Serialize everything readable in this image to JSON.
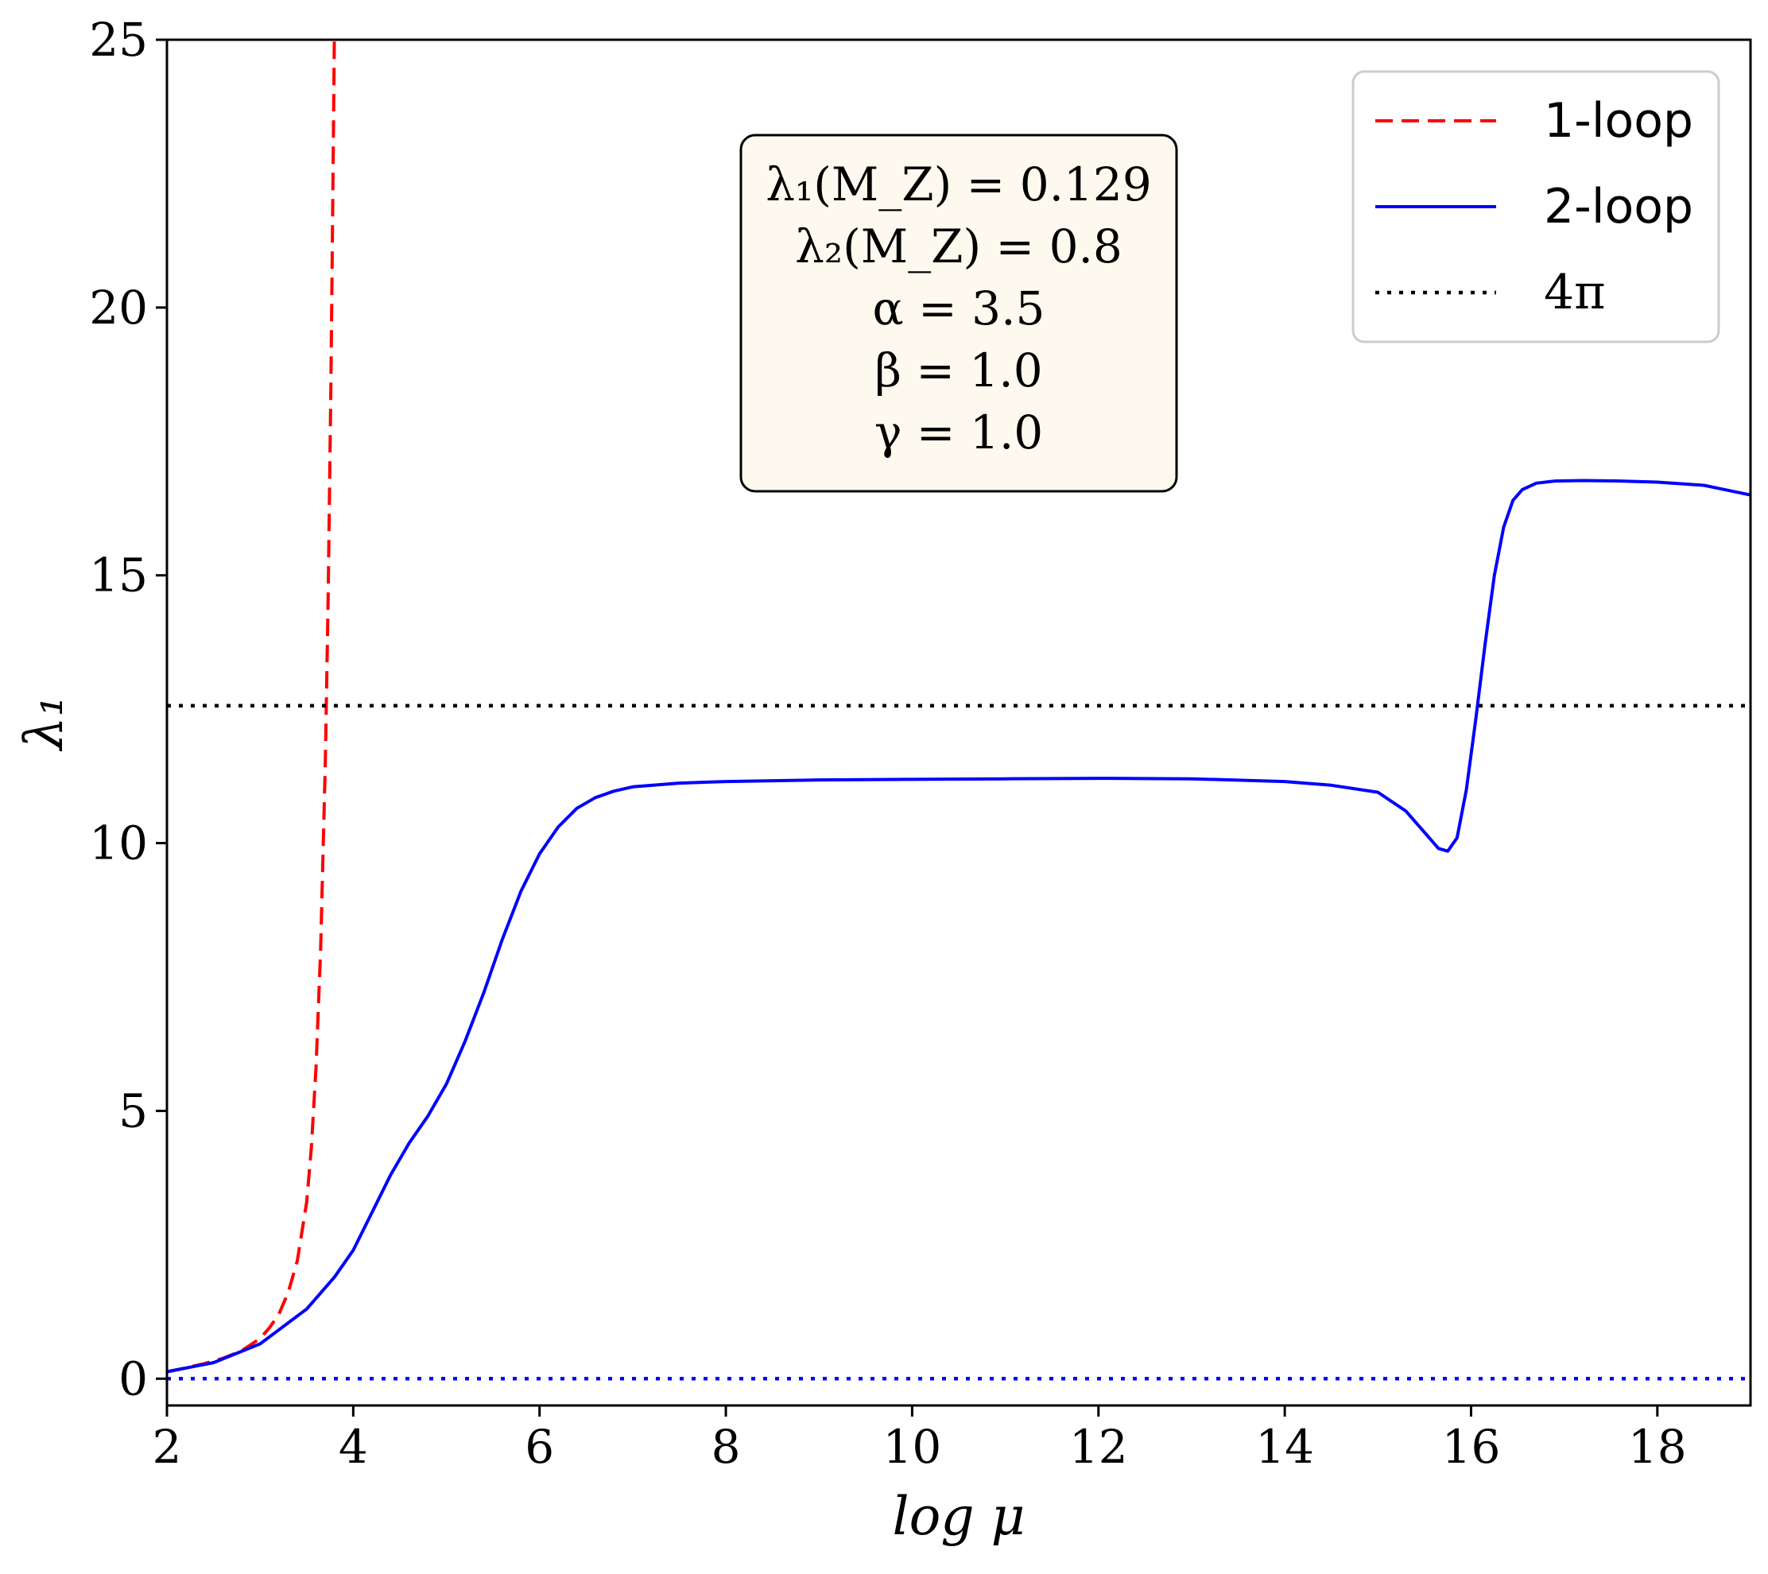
{
  "chart_data": {
    "type": "line",
    "xlabel": "log μ",
    "ylabel": "λ₁",
    "xlim": [
      2,
      19
    ],
    "ylim": [
      -0.5,
      25
    ],
    "xticks": [
      2,
      4,
      6,
      8,
      10,
      12,
      14,
      16,
      18
    ],
    "yticks": [
      0,
      5,
      10,
      15,
      20,
      25
    ],
    "grid": false,
    "legend": {
      "position": "top-right",
      "entries": [
        "1-loop",
        "2-loop",
        "4π"
      ]
    },
    "annotation": {
      "lines": [
        "λ₁(M_Z) = 0.129",
        "λ₂(M_Z) = 0.8",
        "α = 3.5",
        "β = 1.0",
        "γ = 1.0"
      ],
      "background": "#fdf9ee"
    },
    "series": [
      {
        "name": "1-loop",
        "style": "dashed",
        "color": "#ff0000",
        "x": [
          2.0,
          2.2,
          2.4,
          2.6,
          2.8,
          3.0,
          3.1,
          3.2,
          3.3,
          3.4,
          3.5,
          3.55,
          3.6,
          3.65,
          3.7,
          3.73,
          3.76,
          3.78,
          3.8
        ],
        "y": [
          0.13,
          0.2,
          0.28,
          0.38,
          0.52,
          0.75,
          0.95,
          1.2,
          1.6,
          2.2,
          3.3,
          4.3,
          5.8,
          8.0,
          11.5,
          14.5,
          18.5,
          22.0,
          25.5
        ]
      },
      {
        "name": "2-loop",
        "style": "solid",
        "color": "#0000ff",
        "x": [
          2.0,
          2.5,
          3.0,
          3.5,
          3.8,
          4.0,
          4.2,
          4.4,
          4.6,
          4.8,
          5.0,
          5.2,
          5.4,
          5.6,
          5.8,
          6.0,
          6.2,
          6.4,
          6.6,
          6.8,
          7.0,
          7.5,
          8.0,
          9.0,
          10.0,
          11.0,
          12.0,
          13.0,
          14.0,
          14.5,
          15.0,
          15.3,
          15.5,
          15.65,
          15.75,
          15.85,
          15.95,
          16.05,
          16.15,
          16.25,
          16.35,
          16.45,
          16.55,
          16.7,
          16.9,
          17.2,
          17.6,
          18.0,
          18.5,
          19.0
        ],
        "y": [
          0.13,
          0.3,
          0.65,
          1.3,
          1.9,
          2.4,
          3.1,
          3.8,
          4.4,
          4.9,
          5.5,
          6.3,
          7.2,
          8.2,
          9.1,
          9.8,
          10.3,
          10.65,
          10.85,
          10.97,
          11.05,
          11.12,
          11.15,
          11.18,
          11.19,
          11.2,
          11.21,
          11.2,
          11.15,
          11.08,
          10.95,
          10.6,
          10.2,
          9.9,
          9.85,
          10.1,
          11.0,
          12.3,
          13.7,
          15.0,
          15.9,
          16.4,
          16.6,
          16.72,
          16.76,
          16.77,
          16.76,
          16.74,
          16.68,
          16.5
        ]
      },
      {
        "name": "4π",
        "style": "dotted",
        "color": "#000000",
        "x": [
          2,
          19
        ],
        "y": [
          12.566,
          12.566
        ]
      },
      {
        "name": "",
        "style": "dotted",
        "color": "#0000ff",
        "x": [
          2,
          19
        ],
        "y": [
          0,
          0
        ]
      }
    ]
  }
}
